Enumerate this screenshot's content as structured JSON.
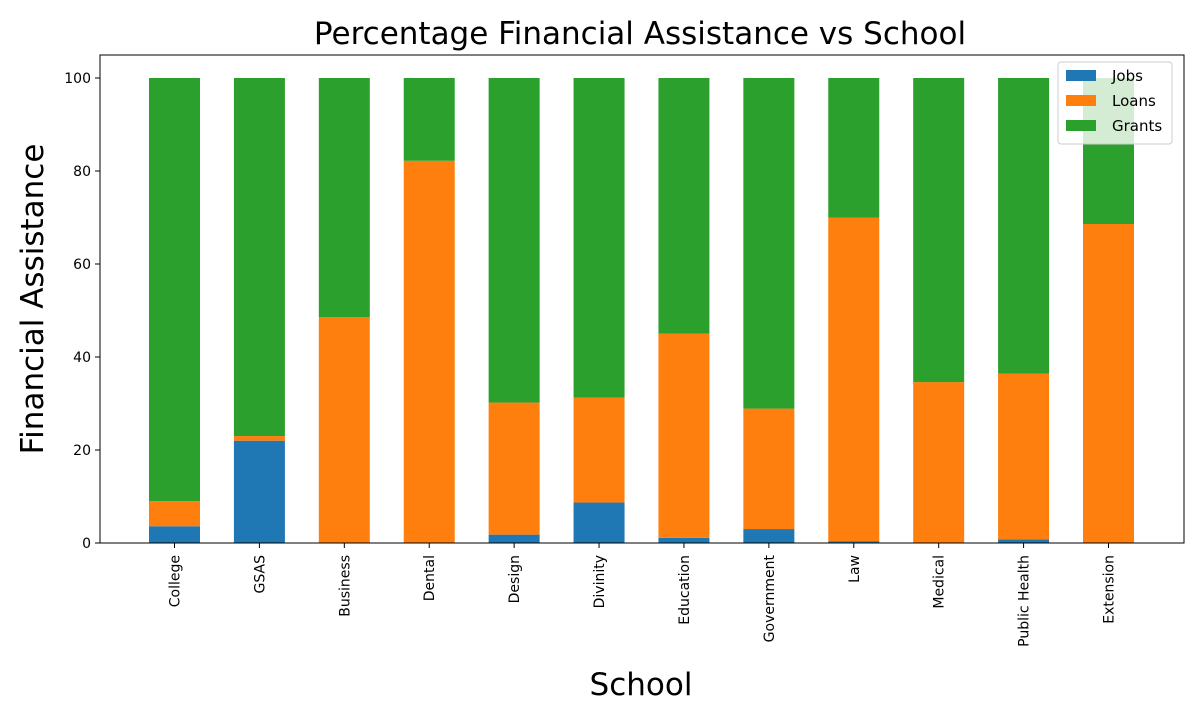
{
  "chart_data": {
    "type": "bar",
    "stacked": true,
    "title": "Percentage Financial Assistance vs School",
    "xlabel": "School",
    "ylabel": "Financial Assistance",
    "ylim": [
      0,
      100
    ],
    "yticks": [
      0,
      20,
      40,
      60,
      80,
      100
    ],
    "grid": false,
    "legend_position": "top-right",
    "categories": [
      "College",
      "GSAS",
      "Business",
      "Dental",
      "Design",
      "Divinity",
      "Education",
      "Government",
      "Law",
      "Medical",
      "Public Health",
      "Extension"
    ],
    "series": [
      {
        "name": "Jobs",
        "color": "#1f77b4",
        "values": [
          3.6,
          22,
          0,
          0,
          1.8,
          8.7,
          1.1,
          3,
          0.4,
          0,
          0.8,
          0
        ]
      },
      {
        "name": "Loans",
        "color": "#ff7f0e",
        "values": [
          5.4,
          1,
          48.6,
          82.2,
          28.4,
          22.6,
          43.9,
          25.9,
          69.6,
          34.6,
          35.6,
          68.6
        ]
      },
      {
        "name": "Grants",
        "color": "#2ca02c",
        "values": [
          91,
          77,
          51.4,
          17.8,
          69.8,
          68.7,
          55,
          71.1,
          30,
          65.4,
          63.6,
          31.4
        ]
      }
    ]
  }
}
